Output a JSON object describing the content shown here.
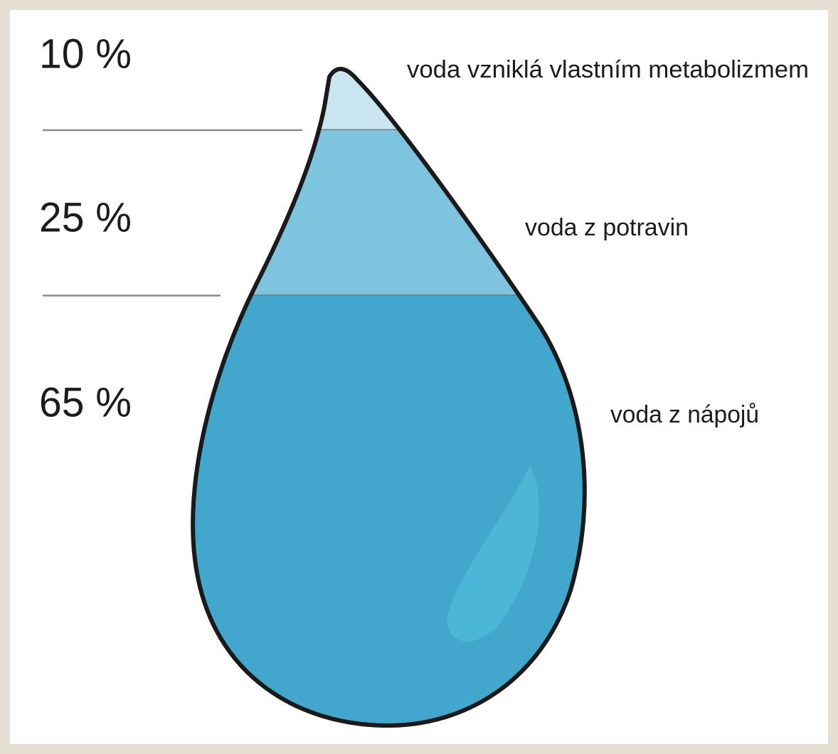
{
  "chart_data": {
    "type": "drop",
    "categories": [
      "voda vzniklá vlastním metabolizmem",
      "voda z potravin",
      "voda z nápojů"
    ],
    "values": [
      10,
      25,
      65
    ],
    "value_labels": [
      "10 %",
      "25 %",
      "65 %"
    ],
    "colors": [
      "#c9e5ef",
      "#7ec4de",
      "#43a6cd"
    ]
  }
}
